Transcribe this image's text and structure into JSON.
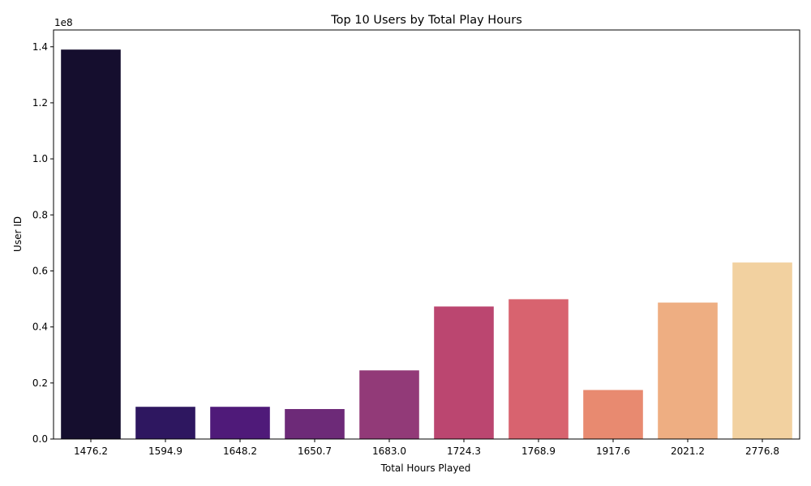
{
  "chart_data": {
    "type": "bar",
    "title": "Top 10 Users by Total Play Hours",
    "xlabel": "Total Hours Played",
    "ylabel": "User ID",
    "y_offset_label": "1e8",
    "categories": [
      "1476.2",
      "1594.9",
      "1648.2",
      "1650.7",
      "1683.0",
      "1724.3",
      "1768.9",
      "1917.6",
      "2021.2",
      "2776.8"
    ],
    "values": [
      139000000,
      11500000,
      11500000,
      10700000,
      24500000,
      47300000,
      49900000,
      17500000,
      48700000,
      63000000
    ],
    "y_ticks": [
      0.0,
      0.2,
      0.4,
      0.6,
      0.8,
      1.0,
      1.2,
      1.4
    ],
    "y_tick_labels": [
      "0.0",
      "0.2",
      "0.4",
      "0.6",
      "0.8",
      "1.0",
      "1.2",
      "1.4"
    ],
    "y_scale_factor": 100000000,
    "ylim": [
      0,
      146000000
    ],
    "colors": [
      "#150e2e",
      "#2e1760",
      "#4f1a79",
      "#6d2a78",
      "#923a78",
      "#bb4670",
      "#d8636f",
      "#e88a70",
      "#eeae82",
      "#f2d1a0"
    ],
    "grid": false,
    "legend": "none"
  }
}
